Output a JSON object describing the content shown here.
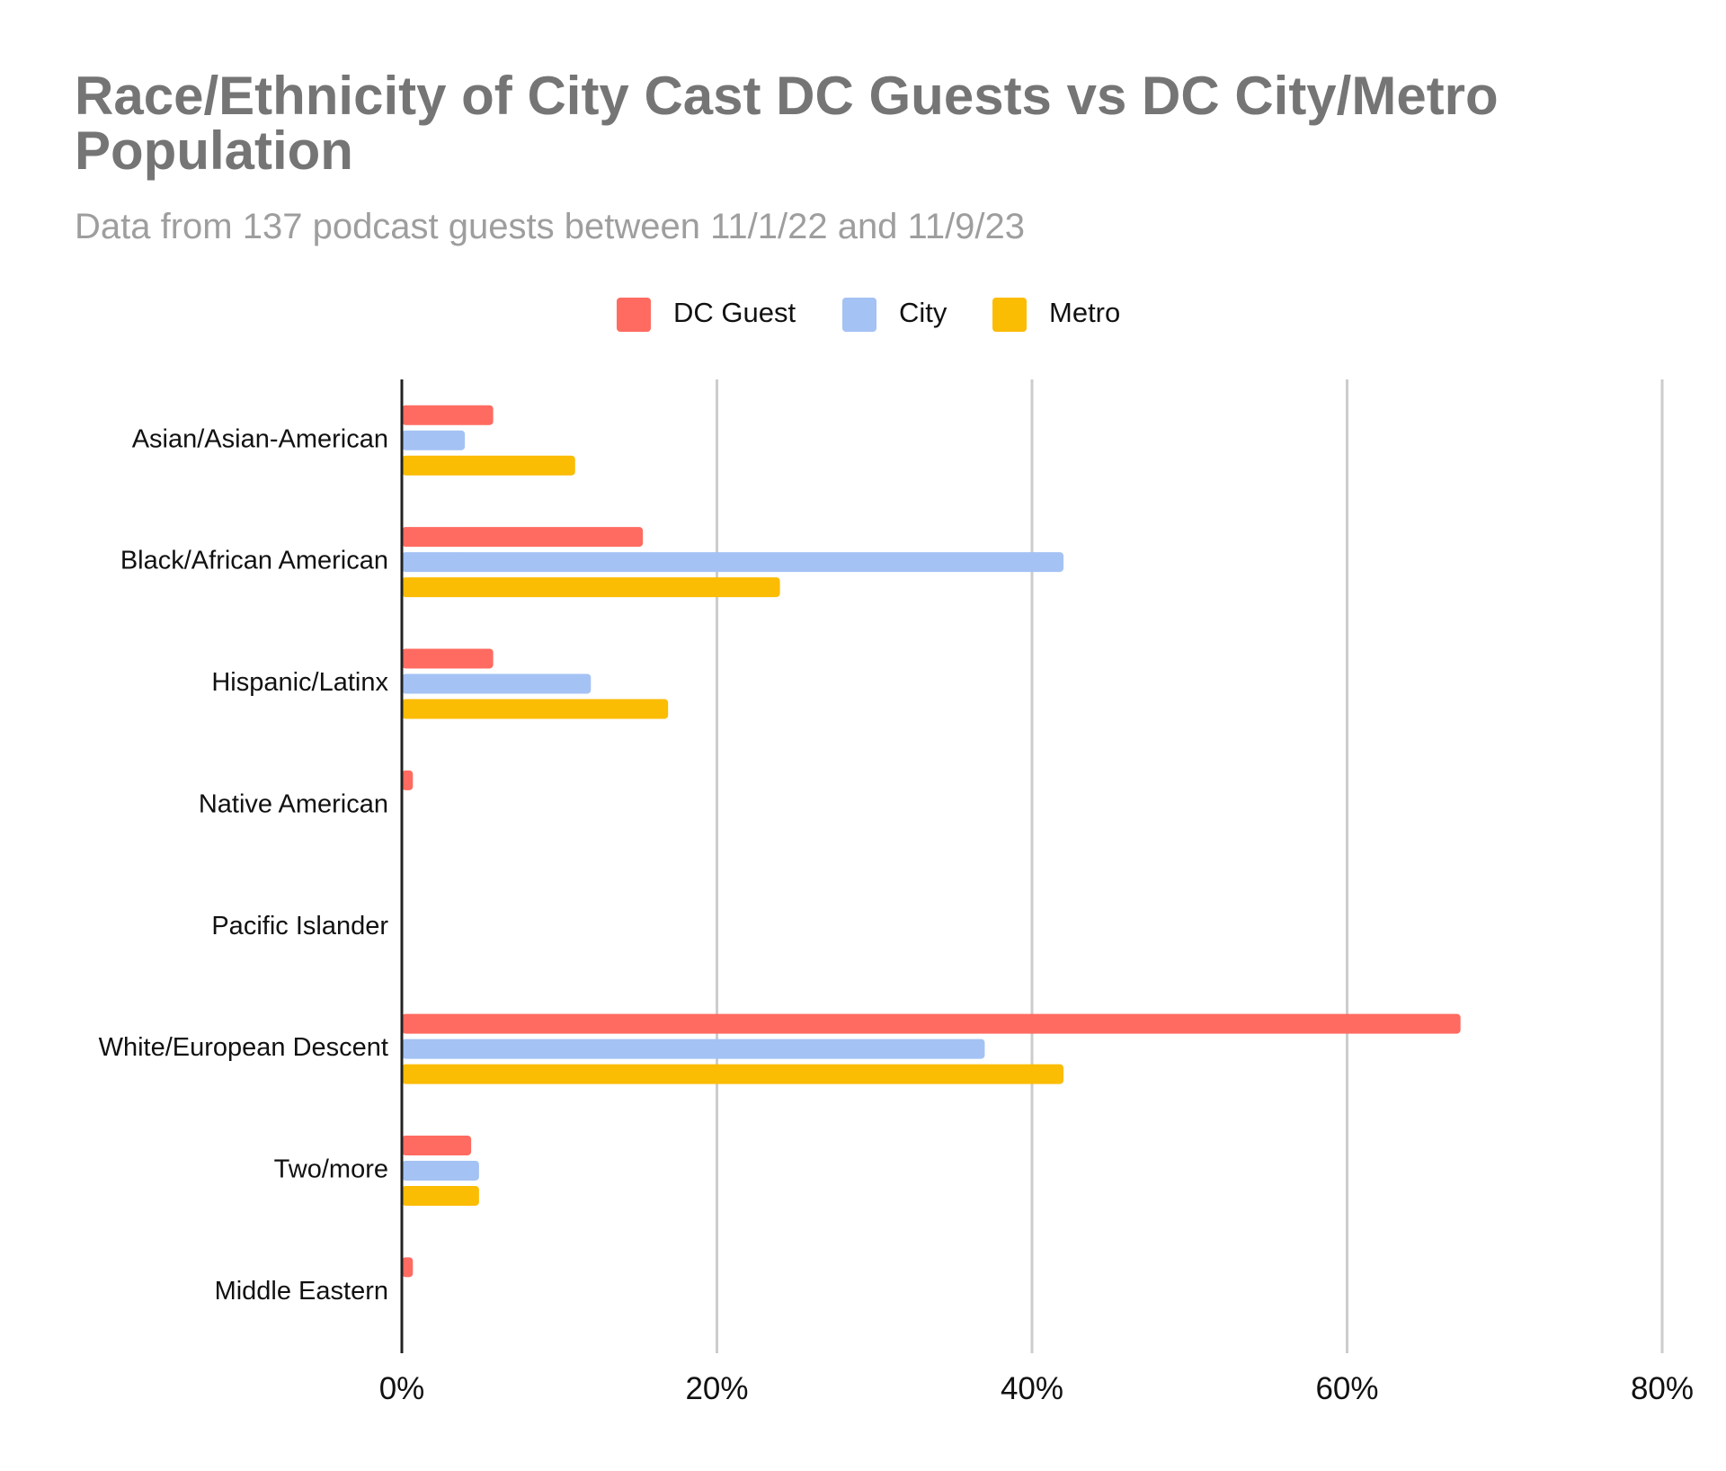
{
  "chart_data": {
    "type": "bar",
    "orientation": "horizontal",
    "title": "Race/Ethnicity of City Cast DC Guests vs DC City/Metro Population",
    "subtitle": "Data from 137 podcast guests between 11/1/22 and 11/9/23",
    "categories": [
      "Asian/Asian-American",
      "Black/African American",
      "Hispanic/Latinx",
      "Native American",
      "Pacific Islander",
      "White/European Descent",
      "Two/more",
      "Middle Eastern"
    ],
    "series": [
      {
        "name": "DC Guest",
        "color": "#ff6b61",
        "values": [
          5.8,
          15.3,
          5.8,
          0.7,
          0,
          67.2,
          4.4,
          0.7
        ]
      },
      {
        "name": "City",
        "color": "#a4c2f4",
        "values": [
          4.0,
          42.0,
          12.0,
          0,
          0,
          37.0,
          4.9,
          0
        ]
      },
      {
        "name": "Metro",
        "color": "#fbbc04",
        "values": [
          11.0,
          24.0,
          16.9,
          0,
          0,
          42.0,
          4.9,
          0
        ]
      }
    ],
    "xlim": [
      0,
      80
    ],
    "x_ticks": [
      "0%",
      "20%",
      "40%",
      "60%",
      "80%"
    ],
    "x_tick_values": [
      0,
      20,
      40,
      60,
      80
    ],
    "xlabel": "",
    "ylabel": "",
    "grid": true,
    "legend_position": "top"
  }
}
